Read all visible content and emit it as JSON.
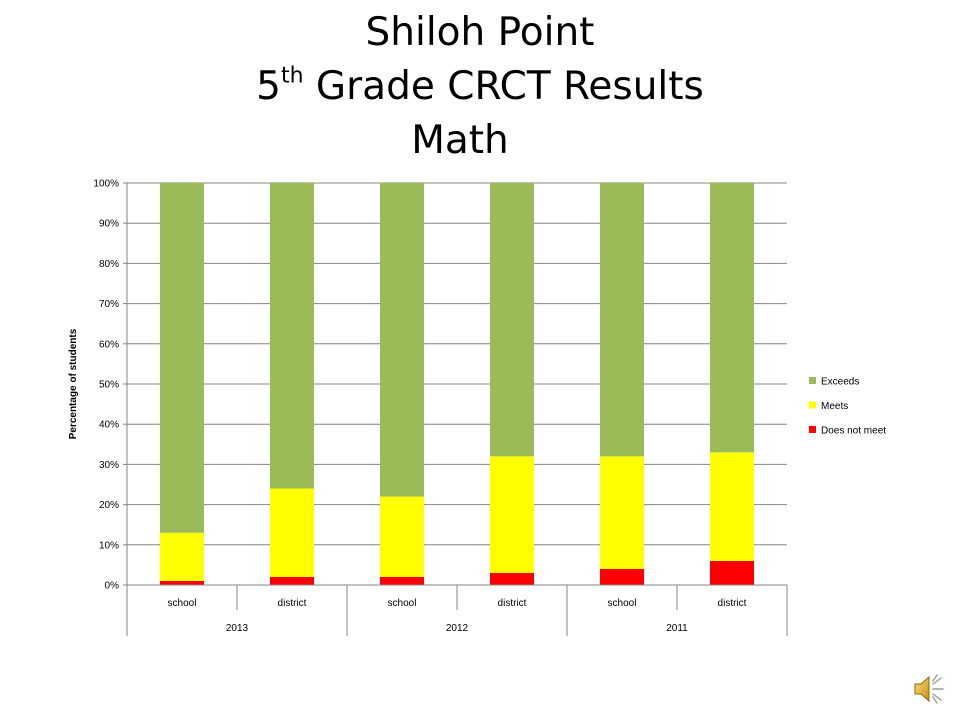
{
  "slide": {
    "title_line1": "Shiloh Point",
    "title_line2_num": "5",
    "title_line2_sup": "th",
    "title_line2_rest": " Grade CRCT Results",
    "title_line3": "Math"
  },
  "chart_data": {
    "type": "bar",
    "stacked": "percent",
    "title": "Shiloh Point 5th Grade CRCT Results Math",
    "xlabel": "",
    "ylabel": "Percentage of students",
    "ylim": [
      0,
      100
    ],
    "yticks": [
      "0%",
      "10%",
      "20%",
      "30%",
      "40%",
      "50%",
      "60%",
      "70%",
      "80%",
      "90%",
      "100%"
    ],
    "grid": true,
    "legend_position": "right",
    "categories": [
      "school",
      "district",
      "school",
      "district",
      "school",
      "district"
    ],
    "groups": [
      {
        "label": "2013",
        "categories": [
          "school",
          "district"
        ]
      },
      {
        "label": "2012",
        "categories": [
          "school",
          "district"
        ]
      },
      {
        "label": "2011",
        "categories": [
          "school",
          "district"
        ]
      }
    ],
    "series": [
      {
        "name": "Does not meet",
        "color": "#ff0000",
        "values": [
          1,
          2,
          2,
          3,
          4,
          6
        ]
      },
      {
        "name": "Meets",
        "color": "#ffff00",
        "values": [
          12,
          22,
          20,
          29,
          28,
          27
        ]
      },
      {
        "name": "Exceeds",
        "color": "#9bbb59",
        "values": [
          87,
          76,
          78,
          68,
          68,
          67
        ]
      }
    ],
    "legend_order": [
      "Exceeds",
      "Meets",
      "Does not meet"
    ]
  },
  "icons": {
    "speaker": "speaker-icon"
  }
}
